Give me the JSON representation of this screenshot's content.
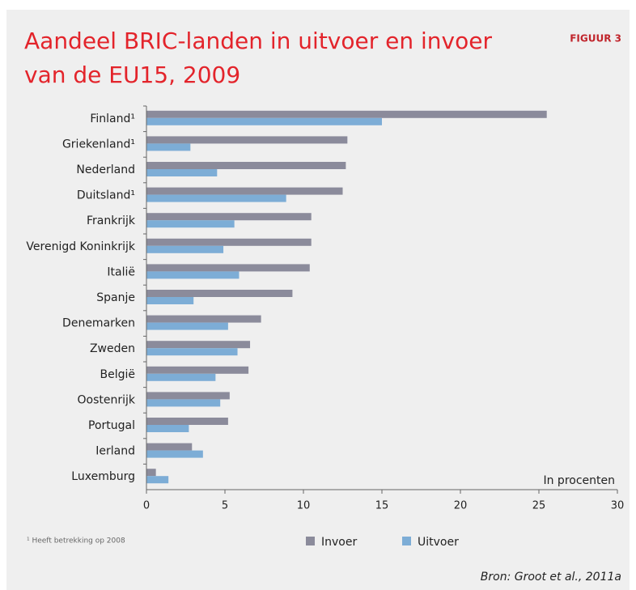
{
  "chart_data": {
    "type": "barh",
    "title": [
      "Aandeel BRIC-landen in uitvoer en invoer",
      "van de EU15, 2009"
    ],
    "figure_label": "FIGUUR 3",
    "unit_label": "In procenten",
    "footnote": "¹ Heeft betrekking op 2008",
    "source": "Bron: Groot et al., 2011a",
    "categories": [
      "Finland¹",
      "Griekenland¹",
      "Nederland",
      "Duitsland¹",
      "Frankrijk",
      "Verenigd Koninkrijk",
      "Italië",
      "Spanje",
      "Denemarken",
      "Zweden",
      "België",
      "Oostenrijk",
      "Portugal",
      "Ierland",
      "Luxemburg"
    ],
    "series": [
      {
        "name": "Invoer",
        "color": "#8b8b9b",
        "values": [
          25.5,
          12.8,
          12.7,
          12.5,
          10.5,
          10.5,
          10.4,
          9.3,
          7.3,
          6.6,
          6.5,
          5.3,
          5.2,
          2.9,
          0.6
        ]
      },
      {
        "name": "Uitvoer",
        "color": "#7dadd6",
        "values": [
          15.0,
          2.8,
          4.5,
          8.9,
          5.6,
          4.9,
          5.9,
          3.0,
          5.2,
          5.8,
          4.4,
          4.7,
          2.7,
          3.6,
          1.4
        ]
      }
    ],
    "xlim": [
      0,
      30
    ],
    "xticks": [
      0,
      5,
      10,
      15,
      20,
      25,
      30
    ]
  }
}
